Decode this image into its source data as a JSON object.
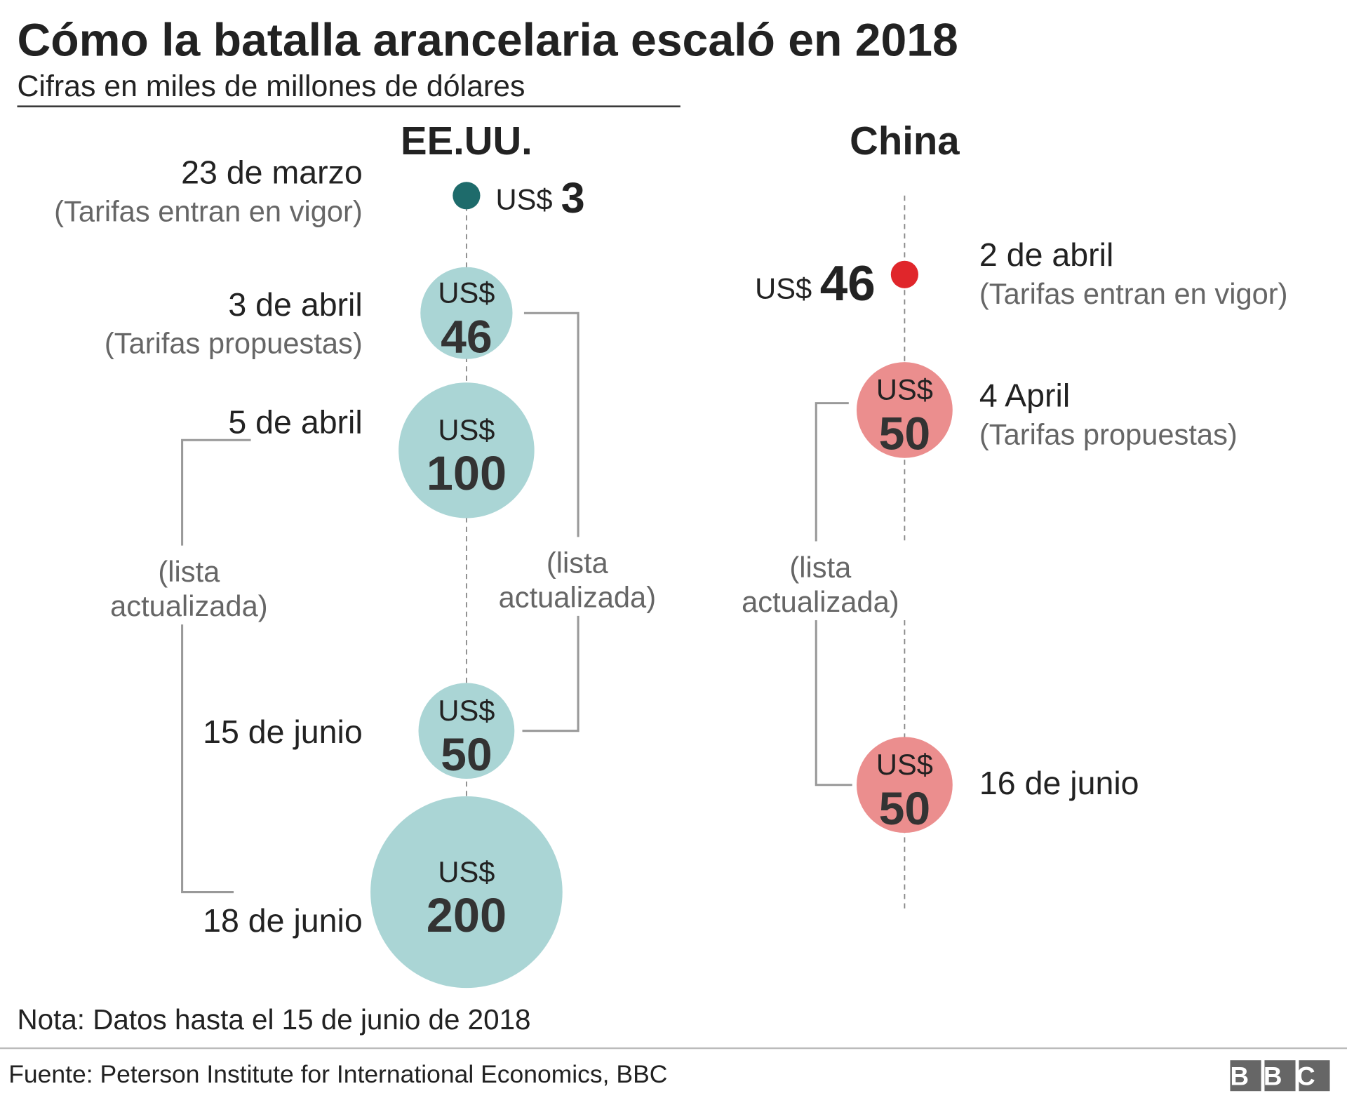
{
  "chart_data": {
    "type": "bubble",
    "title": "Cómo la batalla arancelaria escaló en 2018",
    "subtitle": "Cifras en miles de millones de dólares",
    "currency": "US$",
    "series": [
      {
        "name": "EE.UU.",
        "color": "#aad5d5",
        "first_color": "#1e6b6b",
        "values": [
          3,
          46,
          100,
          50,
          200
        ],
        "dates": [
          "23 de marzo",
          "3 de abril",
          "5 de abril",
          "15 de junio",
          "18 de junio"
        ],
        "notes": [
          "(Tarifas entran en vigor)",
          "(Tarifas propuestas)",
          null,
          null,
          null
        ]
      },
      {
        "name": "China",
        "color": "#eb8e8e",
        "first_color": "#e0262b",
        "values": [
          46,
          50,
          50
        ],
        "dates": [
          "2 de abril",
          "4 April",
          "16 de junio"
        ],
        "notes": [
          "(Tarifas entran en vigor)",
          "(Tarifas propuestas)",
          null
        ]
      }
    ],
    "annotations": [
      [
        "(lista",
        "actualizada)"
      ],
      [
        "(lista",
        "actualizada)"
      ],
      [
        "(lista",
        "actualizada)"
      ]
    ],
    "note": "Nota: Datos hasta el 15 de junio de 2018",
    "source": "Fuente: Peterson Institute for International Economics, BBC",
    "logo": "BBC"
  }
}
